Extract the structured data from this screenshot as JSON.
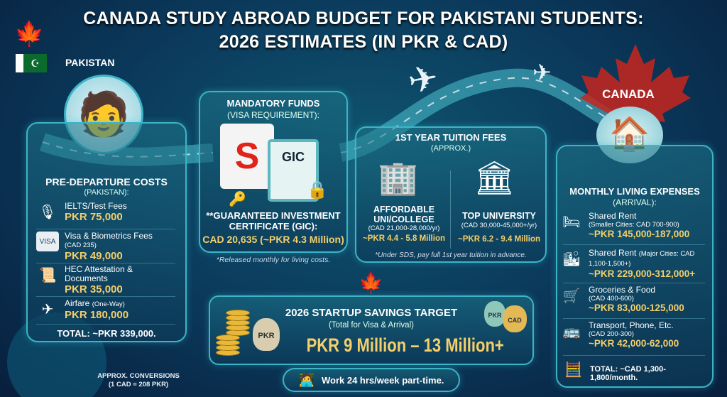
{
  "title": {
    "line1": "CANADA STUDY ABROAD BUDGET FOR PAKISTANI STUDENTS:",
    "line2": "2026 ESTIMATES (IN PKR & CAD)"
  },
  "labels": {
    "pakistan": "PAKISTAN",
    "canada": "CANADA"
  },
  "predeparture": {
    "title": "PRE-DEPARTURE COSTS",
    "subtitle": "(PAKISTAN):",
    "items": [
      {
        "icon": "microphone-headset-icon",
        "label": "IELTS/Test Fees",
        "note": "",
        "value": "PKR 75,000"
      },
      {
        "icon": "visa-card-icon",
        "label": "Visa & Biometrics Fees",
        "note": "(CAD 235)",
        "value": "PKR 49,000"
      },
      {
        "icon": "certificate-stamp-icon",
        "label": "HEC Attestation & Documents",
        "note": "",
        "value": "PKR 35,000"
      },
      {
        "icon": "airplane-icon",
        "label": "Airfare",
        "note": "(One-Way)",
        "value": "PKR 180,000"
      }
    ],
    "total": "TOTAL: ~PKR 339,000."
  },
  "funds": {
    "title": "MANDATORY FUNDS",
    "subtitle": "(VISA REQUIREMENT):",
    "gic_label": "GIC",
    "heading": "**GUARANTEED INVESTMENT CERTIFICATE (GIC):",
    "value": "CAD 20,635 (~PKR 4.3 Million)",
    "note": "*Released monthly for living costs."
  },
  "tuition": {
    "title": "1ST YEAR TUITION FEES",
    "subtitle": "(APPROX.)",
    "options": [
      {
        "name": "AFFORDABLE UNI/COLLEGE",
        "cad": "(CAD 21,000-28,000/yr)",
        "pkr": "~PKR 4.4 - 5.8 Million"
      },
      {
        "name": "TOP UNIVERSITY",
        "cad": "(CAD 30,000-45,000+/yr)",
        "pkr": "~PKR 6.2 - 9.4 Million"
      }
    ],
    "note": "*Under SDS, pay full 1st year tuition in advance."
  },
  "living": {
    "title": "MONTHLY LIVING EXPENSES",
    "subtitle": "(ARRIVAL):",
    "items": [
      {
        "icon": "bed-house-icon",
        "label": "Shared Rent",
        "note": "(Smaller Cities: CAD 700-900)",
        "value": "~PKR 145,000-187,000"
      },
      {
        "icon": "city-buildings-icon",
        "label": "Shared Rent",
        "note": "(Major Cities: CAD 1,100-1,500+)",
        "value": "~PKR 229,000-312,000+"
      },
      {
        "icon": "shopping-cart-icon",
        "label": "Groceries & Food",
        "note": "(CAD 400-600)",
        "value": "~PKR 83,000-125,000"
      },
      {
        "icon": "bus-phone-icon",
        "label": "Transport, Phone, Etc.",
        "note": "(CAD 200-300)",
        "value": "~PKR 42,000-62,000"
      }
    ],
    "total": "TOTAL: ~CAD 1,300-1,800/month."
  },
  "savings": {
    "title": "2026 STARTUP SAVINGS TARGET",
    "subtitle": "(Total for Visa & Arrival)",
    "value": "PKR 9 Million – 13 Million+",
    "bag1": "PKR",
    "bag2": "PKR",
    "bag3": "CAD"
  },
  "work": {
    "text": "Work 24 hrs/week part-time."
  },
  "conversion": {
    "line1": "APPROX. CONVERSIONS",
    "line2": "(1 CAD = 208 PKR)"
  },
  "colors": {
    "accent": "#3cb4c6",
    "gold": "#f4cf6a",
    "red": "#d8261f",
    "bg": "#0b3a5c"
  }
}
